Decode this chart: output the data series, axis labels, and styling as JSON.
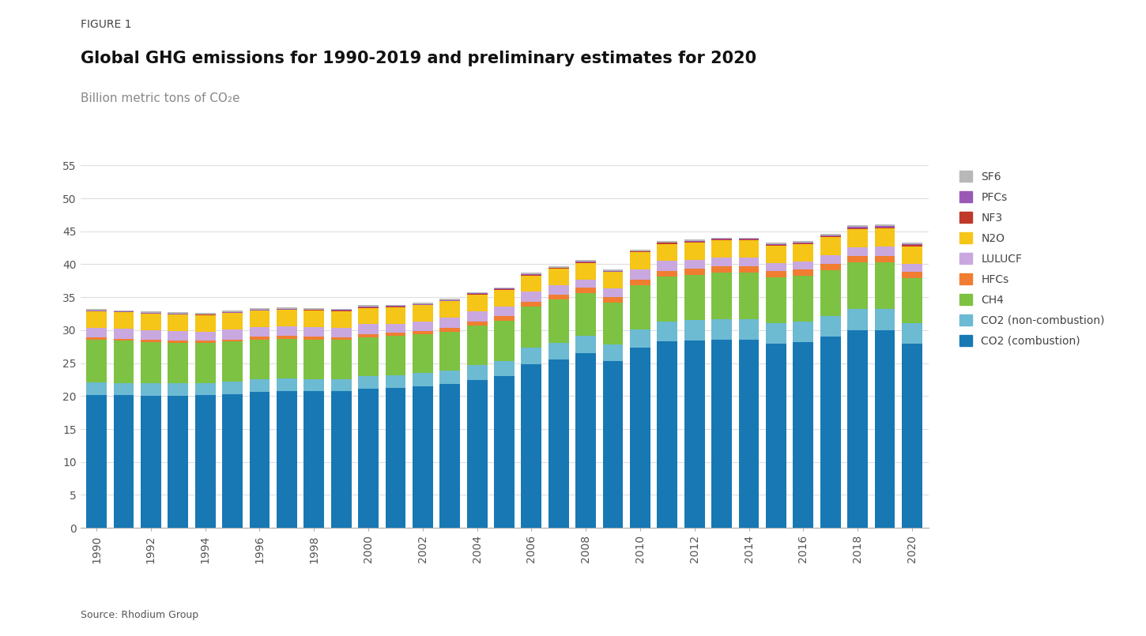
{
  "years": [
    1990,
    1991,
    1992,
    1993,
    1994,
    1995,
    1996,
    1997,
    1998,
    1999,
    2000,
    2001,
    2002,
    2003,
    2004,
    2005,
    2006,
    2007,
    2008,
    2009,
    2010,
    2011,
    2012,
    2013,
    2014,
    2015,
    2016,
    2017,
    2018,
    2019,
    2020
  ],
  "CO2_combustion": [
    20.1,
    20.1,
    20.0,
    20.0,
    20.1,
    20.3,
    20.6,
    20.8,
    20.7,
    20.7,
    21.1,
    21.2,
    21.5,
    21.8,
    22.4,
    23.0,
    24.8,
    25.5,
    26.5,
    25.3,
    27.3,
    28.3,
    28.4,
    28.5,
    28.5,
    28.0,
    28.2,
    29.0,
    30.0,
    30.0,
    28.0
  ],
  "CO2_noncombustion": [
    2.0,
    1.9,
    1.9,
    1.9,
    1.9,
    1.9,
    1.9,
    1.9,
    1.9,
    1.9,
    1.9,
    2.0,
    2.0,
    2.1,
    2.3,
    2.3,
    2.5,
    2.6,
    2.6,
    2.5,
    2.8,
    3.0,
    3.1,
    3.2,
    3.2,
    3.1,
    3.1,
    3.1,
    3.2,
    3.2,
    3.1
  ],
  "CH4": [
    6.5,
    6.4,
    6.3,
    6.2,
    6.1,
    6.1,
    6.1,
    6.0,
    6.0,
    5.9,
    5.9,
    5.9,
    5.9,
    5.9,
    6.0,
    6.1,
    6.3,
    6.5,
    6.5,
    6.4,
    6.7,
    6.8,
    6.9,
    7.0,
    7.0,
    6.9,
    6.9,
    7.0,
    7.1,
    7.1,
    6.8
  ],
  "HFCs": [
    0.3,
    0.3,
    0.3,
    0.3,
    0.3,
    0.3,
    0.4,
    0.4,
    0.4,
    0.4,
    0.5,
    0.5,
    0.5,
    0.6,
    0.6,
    0.7,
    0.7,
    0.8,
    0.8,
    0.8,
    0.9,
    0.9,
    0.9,
    1.0,
    1.0,
    1.0,
    1.0,
    1.0,
    1.0,
    1.0,
    0.9
  ],
  "LULUCF": [
    1.5,
    1.5,
    1.5,
    1.5,
    1.4,
    1.5,
    1.5,
    1.5,
    1.5,
    1.5,
    1.5,
    1.4,
    1.4,
    1.5,
    1.6,
    1.5,
    1.5,
    1.4,
    1.3,
    1.3,
    1.5,
    1.5,
    1.4,
    1.3,
    1.3,
    1.2,
    1.2,
    1.3,
    1.3,
    1.4,
    1.3
  ],
  "N2O": [
    2.5,
    2.5,
    2.5,
    2.5,
    2.5,
    2.5,
    2.5,
    2.5,
    2.5,
    2.5,
    2.5,
    2.5,
    2.5,
    2.5,
    2.5,
    2.5,
    2.5,
    2.5,
    2.5,
    2.5,
    2.6,
    2.6,
    2.6,
    2.6,
    2.6,
    2.6,
    2.6,
    2.7,
    2.7,
    2.7,
    2.6
  ],
  "NF3": [
    0.02,
    0.02,
    0.02,
    0.03,
    0.03,
    0.04,
    0.04,
    0.05,
    0.05,
    0.05,
    0.06,
    0.06,
    0.06,
    0.07,
    0.07,
    0.08,
    0.09,
    0.1,
    0.1,
    0.1,
    0.12,
    0.13,
    0.14,
    0.15,
    0.16,
    0.17,
    0.18,
    0.18,
    0.19,
    0.19,
    0.18
  ],
  "PFCs": [
    0.1,
    0.1,
    0.1,
    0.1,
    0.1,
    0.1,
    0.1,
    0.1,
    0.1,
    0.1,
    0.1,
    0.1,
    0.1,
    0.1,
    0.1,
    0.1,
    0.1,
    0.1,
    0.1,
    0.1,
    0.1,
    0.1,
    0.1,
    0.1,
    0.1,
    0.1,
    0.1,
    0.1,
    0.2,
    0.2,
    0.2
  ],
  "SF6": [
    0.2,
    0.2,
    0.2,
    0.2,
    0.2,
    0.2,
    0.2,
    0.2,
    0.2,
    0.2,
    0.2,
    0.2,
    0.2,
    0.2,
    0.2,
    0.2,
    0.2,
    0.2,
    0.2,
    0.2,
    0.2,
    0.2,
    0.2,
    0.2,
    0.2,
    0.2,
    0.2,
    0.2,
    0.2,
    0.2,
    0.2
  ],
  "colors": {
    "CO2_combustion": "#1778b4",
    "CO2_noncombustion": "#6dbad3",
    "CH4": "#7dc242",
    "HFCs": "#f07d31",
    "LULUCF": "#c9a8e0",
    "N2O": "#f5c518",
    "NF3": "#c0392b",
    "PFCs": "#9b59b6",
    "SF6": "#b8b8b8"
  },
  "labels": {
    "CO2_combustion": "CO2 (combustion)",
    "CO2_noncombustion": "CO2 (non-combustion)",
    "CH4": "CH4",
    "HFCs": "HFCs",
    "LULUCF": "LULUCF",
    "N2O": "N2O",
    "NF3": "NF3",
    "PFCs": "PFCs",
    "SF6": "SF6"
  },
  "title_figure": "FIGURE 1",
  "title_main": "Global GHG emissions for 1990-2019 and preliminary estimates for 2020",
  "subtitle": "Billion metric tons of CO₂e",
  "source": "Source: Rhodium Group",
  "ylim": [
    0,
    55
  ],
  "yticks": [
    0,
    5,
    10,
    15,
    20,
    25,
    30,
    35,
    40,
    45,
    50,
    55
  ],
  "background_color": "#ffffff"
}
